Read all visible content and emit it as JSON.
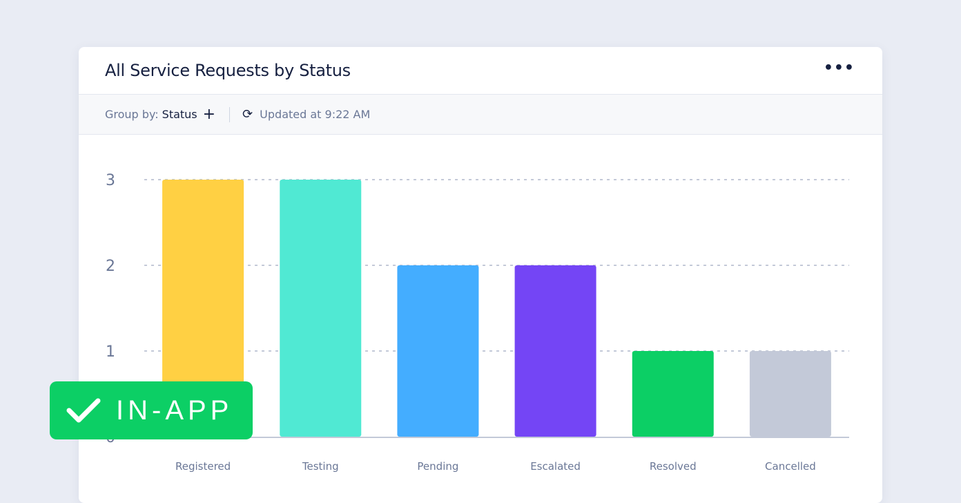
{
  "header": {
    "title": "All Service Requests by Status",
    "more_icon": "more-horizontal-icon"
  },
  "toolbar": {
    "group_by_label": "Group by:",
    "group_by_value": "Status",
    "add_icon": "plus-icon",
    "refresh_icon": "refresh-icon",
    "updated": "Updated at 9:22 AM"
  },
  "badge": {
    "label": "IN-APP",
    "icon": "checkmark-icon",
    "color": "#0ccf65"
  },
  "chart_data": {
    "type": "bar",
    "categories": [
      "Registered",
      "Testing",
      "Pending",
      "Escalated",
      "Resolved",
      "Cancelled"
    ],
    "values": [
      3,
      3,
      2,
      2,
      1,
      1
    ],
    "colors": [
      "#ffd043",
      "#50e9d3",
      "#44adff",
      "#7445f5",
      "#0ccf65",
      "#c3c9d8"
    ],
    "yticks": [
      0,
      1,
      2,
      3
    ],
    "ylim": [
      0,
      3
    ],
    "grid": true,
    "title": "",
    "xlabel": "",
    "ylabel": ""
  }
}
